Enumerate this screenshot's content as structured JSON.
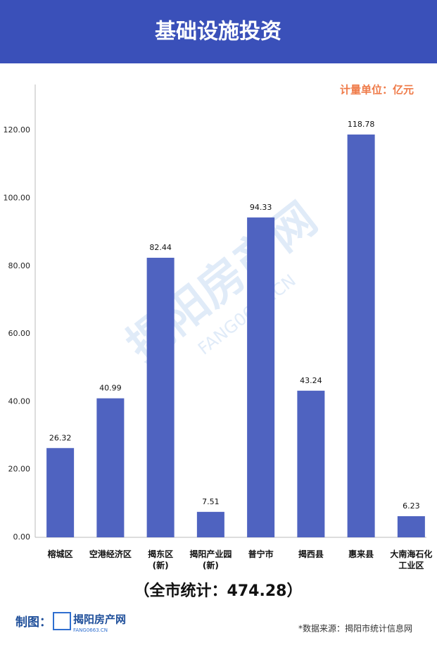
{
  "chart_data": {
    "type": "bar",
    "title": "基础设施投资",
    "unit_label": "计量单位：亿元",
    "categories": [
      "榕城区",
      "空港经济区",
      "揭东区\n(新)",
      "揭阳产业园\n(新)",
      "普宁市",
      "揭西县",
      "惠来县",
      "大南海石化\n工业区"
    ],
    "values": [
      26.32,
      40.99,
      82.44,
      7.51,
      94.33,
      43.24,
      118.78,
      6.23
    ],
    "color": "#4f63c0",
    "ylim": [
      0,
      130
    ],
    "yticks": [
      {
        "value": 0,
        "label": "0.00"
      },
      {
        "value": 20,
        "label": "20.00"
      },
      {
        "value": 40,
        "label": "40.00"
      },
      {
        "value": 60,
        "label": "60.00"
      },
      {
        "value": 80,
        "label": "80.00"
      },
      {
        "value": 100,
        "label": "100.00"
      },
      {
        "value": 120,
        "label": "120.00"
      }
    ],
    "grid": false,
    "total_label": "（全市统计：474.28）"
  },
  "footer": {
    "made_by": "制图：",
    "logo_name": "揭阳房产网",
    "logo_domain": "FANG0663.CN",
    "source": "*数据来源：揭阳市统计信息网"
  },
  "watermark": {
    "name": "揭阳房产网",
    "domain": "FANG0663.CN"
  }
}
